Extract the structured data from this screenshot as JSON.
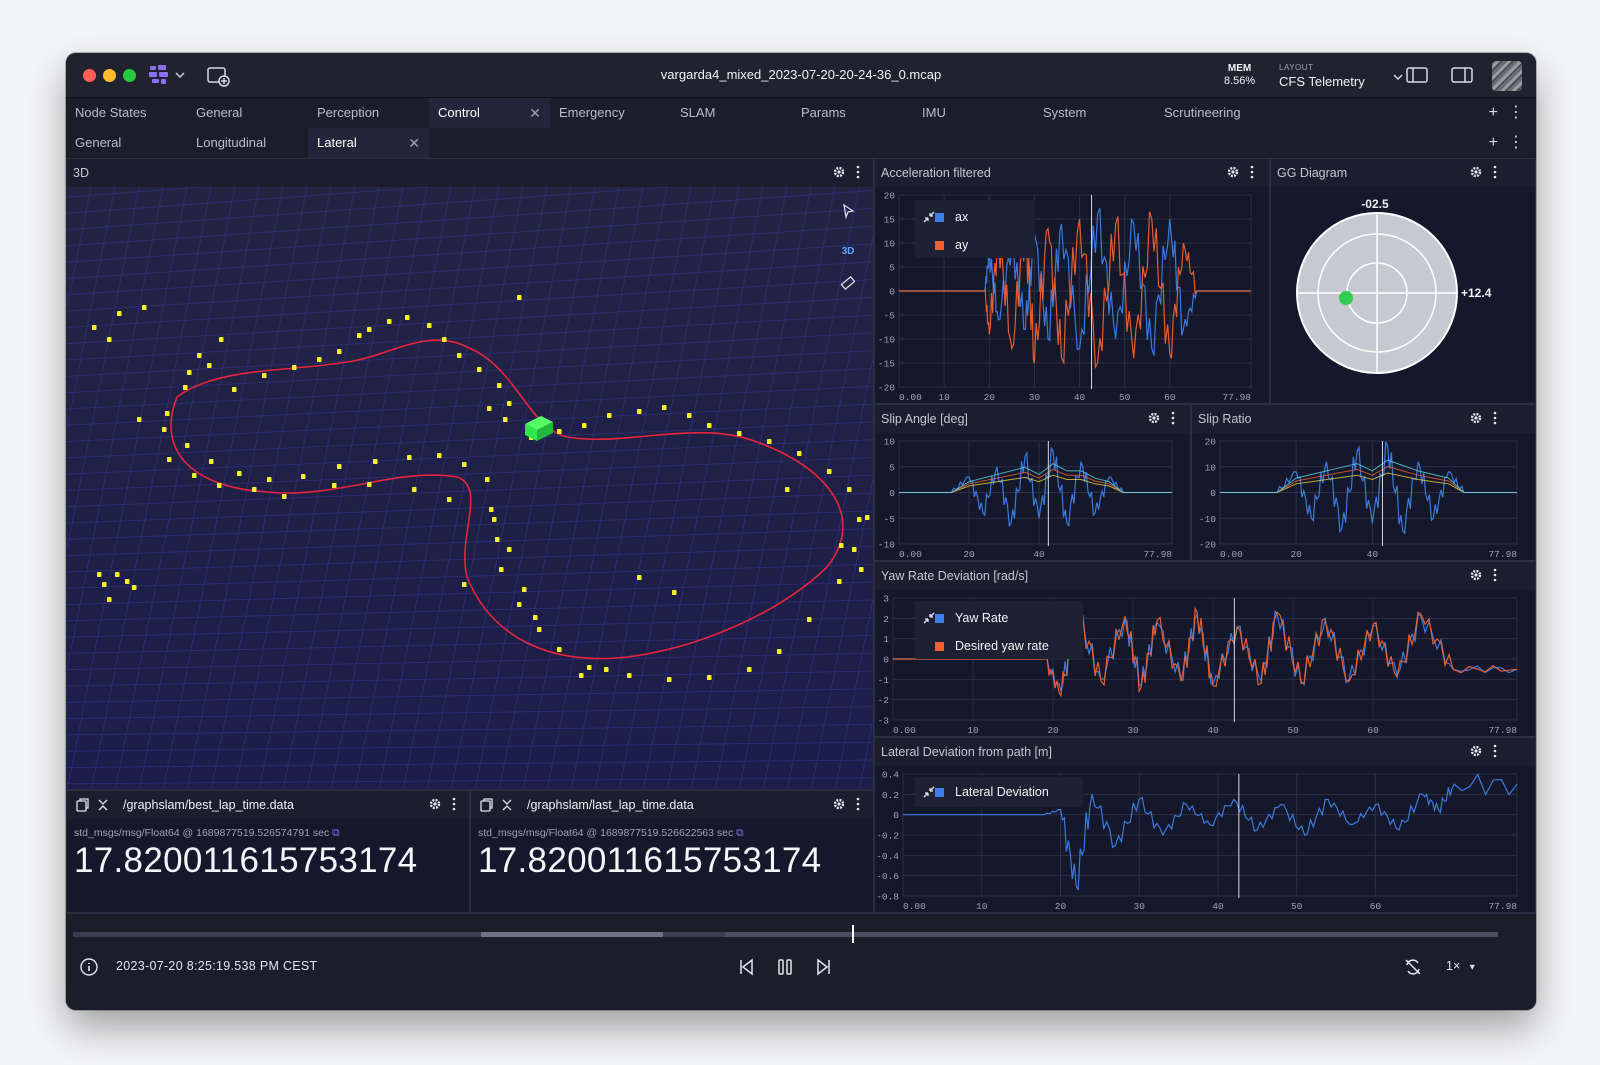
{
  "window": {
    "title": "vargarda4_mixed_2023-07-20-20-24-36_0.mcap"
  },
  "status": {
    "mem_label": "MEM",
    "mem_value": "8.56%",
    "layout_label": "LAYOUT",
    "layout_value": "CFS Telemetry"
  },
  "tabs_row1": [
    {
      "label": "Node States"
    },
    {
      "label": "General"
    },
    {
      "label": "Perception"
    },
    {
      "label": "Control",
      "active": true
    },
    {
      "label": "Emergency"
    },
    {
      "label": "SLAM"
    },
    {
      "label": "Params"
    },
    {
      "label": "IMU"
    },
    {
      "label": "System"
    },
    {
      "label": "Scrutineering"
    }
  ],
  "tabs_row2": [
    {
      "label": "General"
    },
    {
      "label": "Longitudinal"
    },
    {
      "label": "Lateral",
      "active": true
    }
  ],
  "panels": {
    "three_d": {
      "title": "3D",
      "mode_label": "3D"
    },
    "accel": {
      "title": "Acceleration filtered"
    },
    "gg": {
      "title": "GG Diagram",
      "top_value": "-02.5",
      "right_value": "+12.4"
    },
    "slip_angle": {
      "title": "Slip Angle [deg]"
    },
    "slip_ratio": {
      "title": "Slip Ratio"
    },
    "yaw": {
      "title": "Yaw Rate Deviation [rad/s]"
    },
    "lateral": {
      "title": "Lateral Deviation from path [m]"
    },
    "best_lap": {
      "topic": "/graphslam/best_lap_time.data",
      "meta": "std_msgs/msg/Float64 @ 1689877519.526574791 sec",
      "value": "17.820011615753174"
    },
    "last_lap": {
      "topic": "/graphslam/last_lap_time.data",
      "meta": "std_msgs/msg/Float64 @ 1689877519.526622563 sec",
      "value": "17.820011615753174"
    }
  },
  "playback": {
    "timestamp": "2023-07-20 8:25:19.538 PM CEST",
    "speed": "1×",
    "progress": 0.547
  },
  "colors": {
    "series_blue": "#3d7fe6",
    "series_orange": "#f0612f",
    "path_red": "#e8243c",
    "cone_yellow": "#f4f02c",
    "car_green": "#2ee84c",
    "gg_dot": "#2ecc52"
  },
  "chart_data": [
    {
      "type": "line",
      "title": "Acceleration filtered",
      "x": [
        0,
        10,
        19,
        20,
        22,
        25,
        28,
        30,
        33,
        36,
        40,
        44,
        48,
        52,
        56,
        60,
        63,
        66,
        70,
        77.98
      ],
      "x_ticks": [
        "0.00",
        "10",
        "20",
        "30",
        "40",
        "50",
        "60",
        "77.98"
      ],
      "y_ticks": [
        20,
        15,
        10,
        5,
        0,
        -5,
        -10,
        -15,
        -20
      ],
      "ylim": [
        -20,
        20
      ],
      "series": [
        {
          "name": "ax",
          "color": "#3d7fe6",
          "values": [
            0,
            0,
            0,
            8,
            -6,
            10,
            -8,
            12,
            -10,
            14,
            -12,
            16,
            -10,
            14,
            -12,
            15,
            -8,
            0,
            0,
            0
          ]
        },
        {
          "name": "ay",
          "color": "#f0612f",
          "values": [
            0,
            0,
            0,
            -9,
            12,
            -12,
            14,
            -15,
            13,
            -14,
            15,
            -15,
            14,
            -14,
            15,
            -13,
            10,
            0,
            0,
            0
          ]
        }
      ]
    },
    {
      "type": "line",
      "title": "Slip Angle [deg]",
      "x_ticks": [
        "0.00",
        "20",
        "40",
        "77.98"
      ],
      "y_ticks": [
        10,
        5,
        0,
        -5,
        -10
      ],
      "ylim": [
        -10,
        10
      ],
      "x": [
        0,
        15,
        20,
        24,
        28,
        32,
        36,
        40,
        44,
        48,
        52,
        56,
        60,
        64,
        77.98
      ],
      "series": [
        {
          "values": [
            0,
            0,
            3,
            -4,
            5,
            -6,
            7,
            -5,
            8,
            -6,
            6,
            -4,
            3,
            0,
            0
          ]
        }
      ]
    },
    {
      "type": "line",
      "title": "Slip Ratio",
      "x_ticks": [
        "0.00",
        "20",
        "40",
        "77.98"
      ],
      "y_ticks": [
        20,
        10,
        0,
        -10,
        -20
      ],
      "ylim": [
        -20,
        20
      ],
      "x": [
        0,
        15,
        20,
        24,
        28,
        32,
        36,
        40,
        44,
        48,
        52,
        56,
        60,
        64,
        77.98
      ],
      "series": [
        {
          "values": [
            0,
            0,
            8,
            -10,
            12,
            -14,
            16,
            -12,
            18,
            -15,
            12,
            -10,
            8,
            0,
            0
          ]
        }
      ]
    },
    {
      "type": "line",
      "title": "Yaw Rate Deviation [rad/s]",
      "x_ticks": [
        "0.00",
        "10",
        "20",
        "30",
        "40",
        "50",
        "60",
        "77.98"
      ],
      "y_ticks": [
        3,
        2,
        1,
        0,
        -1,
        -2,
        -3
      ],
      "ylim": [
        -3,
        3
      ],
      "x": [
        0,
        19,
        21,
        23,
        26,
        29,
        31,
        33,
        36,
        38,
        40,
        43,
        46,
        48,
        51,
        54,
        57,
        60,
        63,
        66,
        70,
        77.98
      ],
      "series": [
        {
          "name": "Yaw Rate",
          "color": "#3d7fe6",
          "values": [
            0,
            0,
            -1.6,
            2.2,
            -1.0,
            2.0,
            -1.3,
            1.8,
            -1.0,
            2.2,
            -1.2,
            1.5,
            -1.1,
            2.2,
            -1.1,
            1.9,
            -1.0,
            1.6,
            -0.8,
            2.1,
            -0.5,
            -0.5
          ]
        },
        {
          "name": "Desired yaw rate",
          "color": "#f0612f",
          "values": [
            0,
            0,
            -1.8,
            2.4,
            -1.1,
            2.1,
            -1.4,
            1.9,
            -1.1,
            2.3,
            -1.3,
            1.6,
            -1.2,
            2.3,
            -1.2,
            2.0,
            -1.1,
            1.7,
            -0.9,
            2.2,
            -0.5,
            -0.5
          ]
        }
      ]
    },
    {
      "type": "line",
      "title": "Lateral Deviation from path [m]",
      "x_ticks": [
        "0.00",
        "10",
        "20",
        "30",
        "40",
        "50",
        "60",
        "77.98"
      ],
      "y_ticks": [
        0.4,
        0.2,
        0,
        -0.2,
        -0.4,
        -0.6,
        -0.8
      ],
      "ylim": [
        -0.8,
        0.4
      ],
      "x": [
        0,
        18,
        20,
        22,
        24,
        27,
        30,
        33,
        36,
        39,
        42,
        45,
        48,
        51,
        54,
        57,
        60,
        63,
        66,
        68,
        70,
        77.98
      ],
      "series": [
        {
          "name": "Lateral Deviation",
          "color": "#3d7fe6",
          "values": [
            0,
            0,
            0.05,
            -0.7,
            0.2,
            -0.3,
            0.15,
            -0.2,
            0.1,
            -0.1,
            0.15,
            -0.15,
            0.1,
            -0.2,
            0.15,
            -0.1,
            0.1,
            -0.15,
            0.2,
            0.05,
            0.3,
            0.3
          ]
        }
      ]
    }
  ]
}
